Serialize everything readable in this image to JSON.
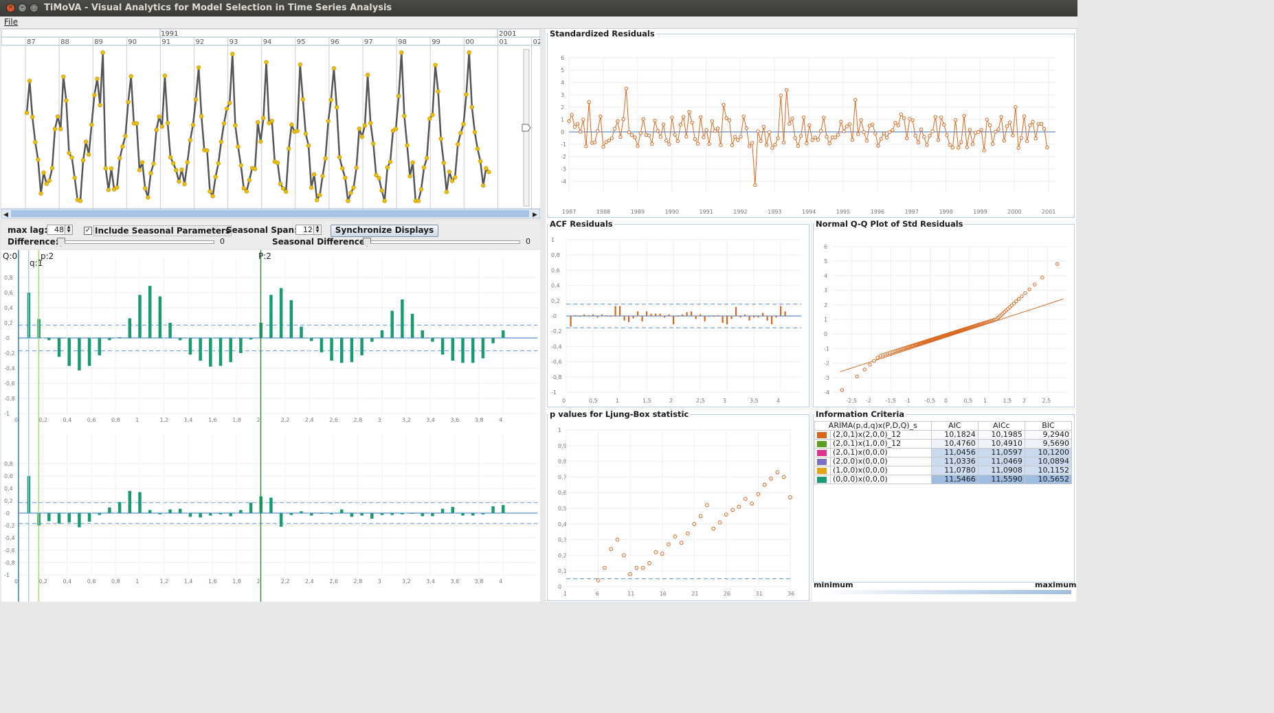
{
  "window": {
    "title": "TiMoVA - Visual Analytics for Model Selection in Time Series Analysis"
  },
  "menu": {
    "file": "File"
  },
  "timeline": {
    "decades": [
      "1991",
      "2001"
    ],
    "years": [
      "87",
      "88",
      "89",
      "90",
      "91",
      "92",
      "93",
      "94",
      "95",
      "96",
      "97",
      "98",
      "99",
      "00",
      "01",
      "02"
    ]
  },
  "controls": {
    "max_lag_label": "max lag:",
    "max_lag_value": "48",
    "include_seasonal_label": "Include Seasonal Parameters",
    "include_seasonal_checked": true,
    "seasonal_span_label": "Seasonal Span:",
    "seasonal_span_value": "12",
    "sync_button": "Synchronize Displays",
    "difference_label": "Difference:",
    "difference_value": "0",
    "seasonal_difference_label": "Seasonal Difference:",
    "seasonal_difference_value": "0"
  },
  "acf_pacf_markers": {
    "q_big": "Q:0",
    "q": "q:1",
    "p": "p:2",
    "p_big": "P:2"
  },
  "acf_pacf_xticks": [
    "0",
    "0,2",
    "0,4",
    "0,6",
    "0,8",
    "1",
    "1,2",
    "1,4",
    "1,6",
    "1,8",
    "2",
    "2,2",
    "2,4",
    "2,6",
    "2,8",
    "3",
    "3,2",
    "3,4",
    "3,6",
    "3,8",
    "4"
  ],
  "acf_pacf_yticks": [
    "0,8",
    "0,6",
    "0,4",
    "0,2",
    "-0",
    "-0,2",
    "-0,4",
    "-0,6",
    "-0,8",
    "-1"
  ],
  "std_residuals": {
    "title": "Standardized Residuals",
    "yticks": [
      "6",
      "5",
      "4",
      "3",
      "2",
      "1",
      "0",
      "-1",
      "-2",
      "-3",
      "-4"
    ],
    "xticks": [
      "1987",
      "1988",
      "1989",
      "1990",
      "1991",
      "1992",
      "1993",
      "1994",
      "1995",
      "1996",
      "1997",
      "1998",
      "1999",
      "2000",
      "2001"
    ]
  },
  "acf_residuals": {
    "title": "ACF Residuals",
    "yticks": [
      "1",
      "0,8",
      "0,6",
      "0,4",
      "0,2",
      "-0",
      "-0,2",
      "-0,4",
      "-0,6",
      "-0,8",
      "-1"
    ],
    "xticks": [
      "0",
      "0,5",
      "1",
      "1,5",
      "2",
      "2,5",
      "3",
      "3,5",
      "4"
    ]
  },
  "qq_plot": {
    "title": "Normal Q-Q Plot of Std Residuals",
    "yticks": [
      "6",
      "5",
      "4",
      "3",
      "2",
      "1",
      "0",
      "-1",
      "-2",
      "-3",
      "-4"
    ],
    "xticks": [
      "-2,5",
      "-2",
      "-1,5",
      "-1",
      "-0,5",
      "0",
      "0,5",
      "1",
      "1,5",
      "2",
      "2,5"
    ]
  },
  "ljung_box": {
    "title": "p values for Ljung-Box statistic",
    "yticks": [
      "1",
      "0,9",
      "0,8",
      "0,7",
      "0,6",
      "0,5",
      "0,4",
      "0,3",
      "0,2",
      "0,1",
      "0"
    ],
    "xticks": [
      "1",
      "6",
      "11",
      "16",
      "21",
      "26",
      "31",
      "36"
    ]
  },
  "info_criteria": {
    "title": "Information Criteria",
    "headers": [
      "ARIMA(p,d,q)x(P,D,Q)_s",
      "AIC",
      "AICc",
      "BIC"
    ],
    "rows": [
      {
        "color": "#d9651a",
        "model": "(2,0,1)x(2,0,0)_12",
        "aic": "10,1824",
        "aicc": "10,1985",
        "bic": "9,2940"
      },
      {
        "color": "#5aa020",
        "model": "(2,0,1)x(1,0,0)_12",
        "aic": "10,4760",
        "aicc": "10,4910",
        "bic": "9,5690"
      },
      {
        "color": "#e0338f",
        "model": "(2,0,1)x(0,0,0)",
        "aic": "11,0456",
        "aicc": "11,0597",
        "bic": "10,1200"
      },
      {
        "color": "#7d6fc4",
        "model": "(2,0,0)x(0,0,0)",
        "aic": "11,0336",
        "aicc": "11,0469",
        "bic": "10,0894"
      },
      {
        "color": "#e4a316",
        "model": "(1,0,0)x(0,0,0)",
        "aic": "11,0780",
        "aicc": "11,0908",
        "bic": "10,1152"
      },
      {
        "color": "#1a9a74",
        "model": "(0,0,0)x(0,0,0)",
        "aic": "11,5466",
        "aicc": "11,5590",
        "bic": "10,5652"
      }
    ],
    "legend_min": "minimum",
    "legend_max": "maximum"
  },
  "colors": {
    "orange": "#d9651a",
    "green_bar": "#1a9a74",
    "series": "#555555",
    "points": "#f0c000",
    "ci": "#5a8fd8"
  }
}
